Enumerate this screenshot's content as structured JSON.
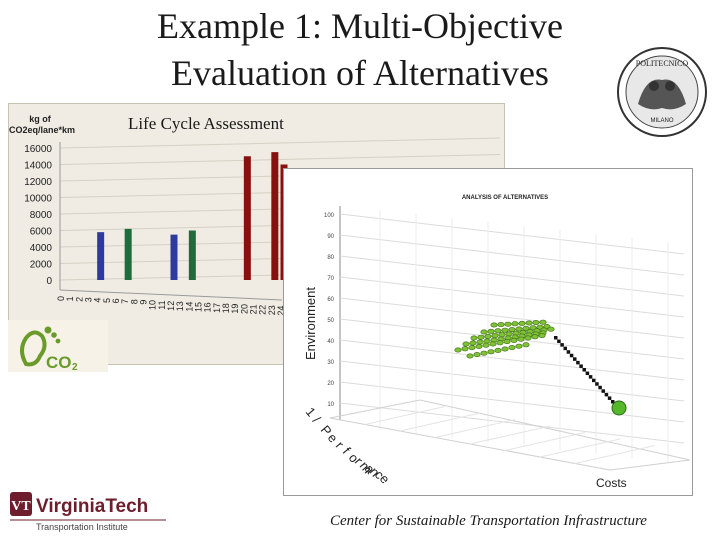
{
  "slide": {
    "title_line1": "Example 1: Multi-Objective",
    "title_line2": "Evaluation of Alternatives",
    "lca_title": "Life Cycle Assessment",
    "footer": "Center for Sustainable Transportation Infrastructure"
  },
  "seal": {
    "text": "POLITECNICO",
    "subtext": "MILANO"
  },
  "footprint_logo": {
    "text": "CO",
    "subscript": "2",
    "color": "#6a9a2a"
  },
  "vt_logo": {
    "name": "VirginiaTech",
    "subtitle": "Transportation Institute",
    "color": "#6e1d2c"
  },
  "chart_data": [
    {
      "type": "bar",
      "title": "Life Cycle Assessment",
      "ylabel_line1": "kg of",
      "ylabel_line2": "CO2eq/lane*km",
      "ylim": [
        0,
        16000
      ],
      "yticks": [
        "16000",
        "14000",
        "12000",
        "10000",
        "8000",
        "6000",
        "4000",
        "2000",
        "0"
      ],
      "xticks": [
        "0",
        "1",
        "2",
        "3",
        "4",
        "5",
        "6",
        "7",
        "8",
        "9",
        "10",
        "11",
        "12",
        "13",
        "14",
        "15",
        "16",
        "17",
        "18",
        "19",
        "20",
        "21",
        "22",
        "23",
        "24"
      ],
      "bars": [
        {
          "category": "4",
          "value": 5800,
          "color": "#2e3a9c"
        },
        {
          "category": "7",
          "value": 6200,
          "color": "#1f6b3a"
        },
        {
          "category": "12",
          "value": 5500,
          "color": "#2e3a9c"
        },
        {
          "category": "14",
          "value": 6000,
          "color": "#1f6b3a"
        },
        {
          "category": "20",
          "value": 15000,
          "color": "#8a1010"
        },
        {
          "category": "23",
          "value": 15500,
          "color": "#8a1010"
        },
        {
          "category": "24",
          "value": 14000,
          "color": "#8a1010"
        }
      ],
      "grid": true
    },
    {
      "type": "scatter",
      "title": "ANALYSIS OF ALTERNATIVES",
      "axis_labels": {
        "y": "Environment",
        "z_chars": [
          "1",
          "/",
          "P",
          "e",
          "r",
          "f",
          "o",
          "r",
          "m",
          "a",
          "n",
          "c",
          "e"
        ],
        "x": "Costs"
      },
      "yticks": [
        "100",
        "90",
        "80",
        "70",
        "60",
        "50",
        "40",
        "30",
        "20",
        "10"
      ],
      "cluster_color": "#7fc234",
      "highlight_color": "#55b82c",
      "connector_style": "dotted",
      "grid": true
    }
  ]
}
